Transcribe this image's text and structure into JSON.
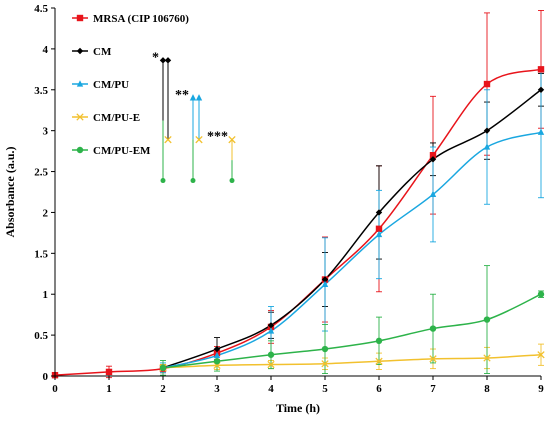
{
  "chart_data": {
    "type": "line",
    "title": "",
    "xlabel": "Time (h)",
    "ylabel": "Absorbance (a.u.)",
    "xlim": [
      0,
      9
    ],
    "ylim": [
      0,
      4.5
    ],
    "x_ticks": [
      "0",
      "1",
      "2",
      "3",
      "4",
      "5",
      "6",
      "7",
      "8",
      "9"
    ],
    "y_ticks": [
      "0",
      "0.5",
      "1",
      "1.5",
      "2",
      "2.5",
      "3",
      "3.5",
      "4",
      "4.5"
    ],
    "grid": false,
    "legend_position": "top-left",
    "series": [
      {
        "name": "MRSA (CIP 106760)",
        "color": "#e8141b",
        "marker": "square",
        "points": [
          {
            "x": 0,
            "y": 0.01,
            "err": 0.01
          },
          {
            "x": 1,
            "y": 0.05,
            "err": 0.07
          },
          {
            "x": 2,
            "y": 0.09,
            "err": 0.05
          },
          {
            "x": 3,
            "y": 0.28,
            "err": 0.08
          },
          {
            "x": 4,
            "y": 0.6,
            "err": 0.2
          },
          {
            "x": 5,
            "y": 1.18,
            "err": 0.52
          },
          {
            "x": 6,
            "y": 1.8,
            "err": 0.77
          },
          {
            "x": 7,
            "y": 2.7,
            "err": 0.72
          },
          {
            "x": 8,
            "y": 3.57,
            "err": 0.87
          },
          {
            "x": 9,
            "y": 3.75,
            "err": 0.72
          }
        ]
      },
      {
        "name": "CM",
        "color": "#000000",
        "marker": "diamond",
        "points": [
          {
            "x": 2,
            "y": 0.1,
            "err": 0.04
          },
          {
            "x": 3,
            "y": 0.33,
            "err": 0.14
          },
          {
            "x": 4,
            "y": 0.62,
            "err": 0.16
          },
          {
            "x": 5,
            "y": 1.18,
            "err": 0.33
          },
          {
            "x": 6,
            "y": 2.0,
            "err": 0.57
          },
          {
            "x": 7,
            "y": 2.65,
            "err": 0.2
          },
          {
            "x": 8,
            "y": 3.0,
            "err": 0.35
          },
          {
            "x": 9,
            "y": 3.5,
            "err": 0.2
          }
        ]
      },
      {
        "name": "CM/PU",
        "color": "#1aa7e0",
        "marker": "triangle",
        "points": [
          {
            "x": 2,
            "y": 0.1,
            "err": 0.06
          },
          {
            "x": 3,
            "y": 0.25,
            "err": 0.08
          },
          {
            "x": 4,
            "y": 0.55,
            "err": 0.3
          },
          {
            "x": 5,
            "y": 1.12,
            "err": 0.57
          },
          {
            "x": 6,
            "y": 1.73,
            "err": 0.54
          },
          {
            "x": 7,
            "y": 2.22,
            "err": 0.58
          },
          {
            "x": 8,
            "y": 2.8,
            "err": 0.7
          },
          {
            "x": 9,
            "y": 2.98,
            "err": 0.8
          }
        ]
      },
      {
        "name": "CM/PU-E",
        "color": "#f2c12e",
        "marker": "x",
        "points": [
          {
            "x": 2,
            "y": 0.1,
            "err": 0.04
          },
          {
            "x": 3,
            "y": 0.13,
            "err": 0.05
          },
          {
            "x": 4,
            "y": 0.14,
            "err": 0.05
          },
          {
            "x": 5,
            "y": 0.15,
            "err": 0.07
          },
          {
            "x": 6,
            "y": 0.18,
            "err": 0.1
          },
          {
            "x": 7,
            "y": 0.21,
            "err": 0.12
          },
          {
            "x": 8,
            "y": 0.22,
            "err": 0.13
          },
          {
            "x": 9,
            "y": 0.26,
            "err": 0.13
          }
        ]
      },
      {
        "name": "CM/PU-EM",
        "color": "#2db34a",
        "marker": "circle",
        "points": [
          {
            "x": 2,
            "y": 0.1,
            "err": 0.09
          },
          {
            "x": 3,
            "y": 0.18,
            "err": 0.12
          },
          {
            "x": 4,
            "y": 0.26,
            "err": 0.17
          },
          {
            "x": 5,
            "y": 0.33,
            "err": 0.3
          },
          {
            "x": 6,
            "y": 0.43,
            "err": 0.29
          },
          {
            "x": 7,
            "y": 0.58,
            "err": 0.42
          },
          {
            "x": 8,
            "y": 0.69,
            "err": 0.66
          },
          {
            "x": 9,
            "y": 1.0,
            "err": 0.04
          }
        ]
      }
    ],
    "significance": [
      {
        "label": "*",
        "top_color": "#000000",
        "bottom_color": "#2db34a",
        "y_top": 3.86,
        "y_bottom": 2.39,
        "end_color": "#f2c12e",
        "end_y": 2.89
      },
      {
        "label": "**",
        "top_color": "#1aa7e0",
        "bottom_color": "#2db34a",
        "y_top": 3.4,
        "y_bottom": 2.39,
        "end_color": "#f2c12e",
        "end_y": 2.89
      },
      {
        "label": "***",
        "top_color": "#f2c12e",
        "bottom_color": "#2db34a",
        "y_top": 2.89,
        "y_bottom": 2.39,
        "end_color": "#2db34a",
        "end_y": 2.39
      }
    ]
  }
}
